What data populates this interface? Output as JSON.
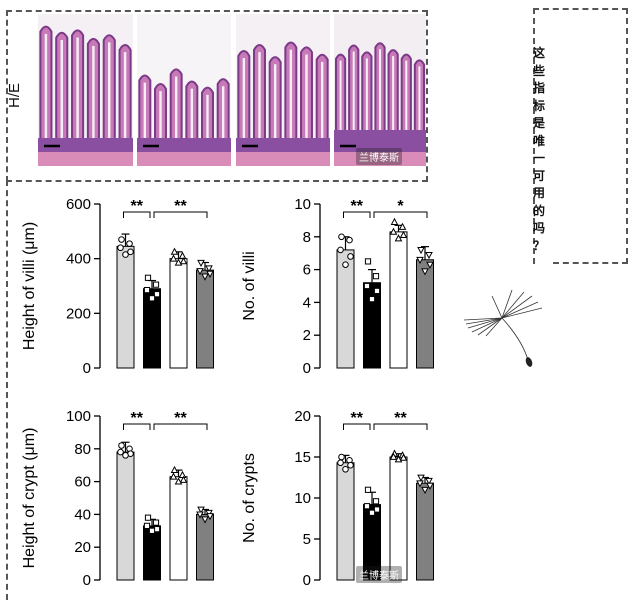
{
  "he_label": "H/E",
  "side_note": [
    "这",
    "些",
    "指",
    "标",
    "是",
    "唯",
    "一",
    "可",
    "用",
    "的",
    "吗",
    "？"
  ],
  "watermarks": [
    "兰博泰斯",
    "兰博泰斯"
  ],
  "colors": {
    "group1": "#d8d8d8",
    "group2": "#000000",
    "group3": "#ffffff",
    "group4": "#808080"
  },
  "chart_data": [
    {
      "type": "bar",
      "title": "",
      "xlabel": "",
      "ylabel": "Height of villi (μm)",
      "ylim": [
        0,
        600
      ],
      "yticks": [
        "0",
        "200",
        "400",
        "600"
      ],
      "categories": [
        "",
        "",
        "",
        ""
      ],
      "values": [
        445,
        290,
        400,
        358
      ],
      "errors": [
        45,
        30,
        25,
        28
      ],
      "markers": [
        "circle",
        "square",
        "triangle-up",
        "triangle-down"
      ],
      "points": [
        [
          470,
          455,
          440,
          425,
          415
        ],
        [
          330,
          305,
          285,
          270,
          255
        ],
        [
          425,
          410,
          400,
          390,
          385
        ],
        [
          385,
          365,
          355,
          345,
          335
        ]
      ],
      "significance": [
        {
          "from": 0,
          "to": 1,
          "label": "**"
        },
        {
          "from": 1,
          "to": 3,
          "label": "**"
        }
      ]
    },
    {
      "type": "bar",
      "title": "",
      "xlabel": "",
      "ylabel": "No. of villi",
      "ylim": [
        0,
        10
      ],
      "yticks": [
        "0",
        "2",
        "4",
        "6",
        "8",
        "10"
      ],
      "categories": [
        "",
        "",
        "",
        ""
      ],
      "values": [
        7.2,
        5.2,
        8.3,
        6.6
      ],
      "errors": [
        0.8,
        0.8,
        0.4,
        0.8
      ],
      "markers": [
        "circle",
        "square",
        "triangle-up",
        "triangle-down"
      ],
      "points": [
        [
          8.0,
          7.8,
          7.2,
          6.8,
          6.3
        ],
        [
          6.5,
          5.6,
          5.0,
          4.7,
          4.2
        ],
        [
          8.9,
          8.6,
          8.3,
          8.1,
          7.9
        ],
        [
          7.2,
          6.9,
          6.6,
          6.3,
          5.9
        ]
      ],
      "significance": [
        {
          "from": 0,
          "to": 1,
          "label": "**"
        },
        {
          "from": 1,
          "to": 3,
          "label": "*"
        }
      ]
    },
    {
      "type": "bar",
      "title": "",
      "xlabel": "",
      "ylabel": "Height of crypt (μm)",
      "ylim": [
        0,
        100
      ],
      "yticks": [
        "0",
        "20",
        "40",
        "60",
        "80",
        "100"
      ],
      "categories": [
        "",
        "",
        "",
        ""
      ],
      "values": [
        78,
        33,
        63,
        40
      ],
      "errors": [
        6,
        4,
        4,
        3
      ],
      "markers": [
        "circle",
        "square",
        "triangle-up",
        "triangle-down"
      ],
      "points": [
        [
          82,
          80,
          78,
          77,
          76
        ],
        [
          38,
          35,
          33,
          31,
          30
        ],
        [
          67,
          64,
          63,
          61,
          60
        ],
        [
          43,
          41,
          40,
          39,
          37
        ]
      ],
      "significance": [
        {
          "from": 0,
          "to": 1,
          "label": "**"
        },
        {
          "from": 1,
          "to": 3,
          "label": "**"
        }
      ]
    },
    {
      "type": "bar",
      "title": "",
      "xlabel": "",
      "ylabel": "No. of crypts",
      "ylim": [
        0,
        20
      ],
      "yticks": [
        "0",
        "5",
        "10",
        "15",
        "20"
      ],
      "categories": [
        "",
        "",
        "",
        ""
      ],
      "values": [
        14.3,
        9.2,
        15.0,
        11.8
      ],
      "errors": [
        0.9,
        1.5,
        0.4,
        0.7
      ],
      "markers": [
        "circle",
        "square",
        "triangle-up",
        "triangle-down"
      ],
      "points": [
        [
          15.0,
          14.6,
          14.3,
          14.0,
          13.5
        ],
        [
          11.0,
          9.6,
          9.0,
          8.6,
          8.2
        ],
        [
          15.4,
          15.2,
          15.0,
          14.9,
          14.7
        ],
        [
          12.5,
          12.1,
          11.8,
          11.5,
          11.0
        ]
      ],
      "significance": [
        {
          "from": 0,
          "to": 1,
          "label": "**"
        },
        {
          "from": 1,
          "to": 3,
          "label": "**"
        }
      ]
    }
  ]
}
